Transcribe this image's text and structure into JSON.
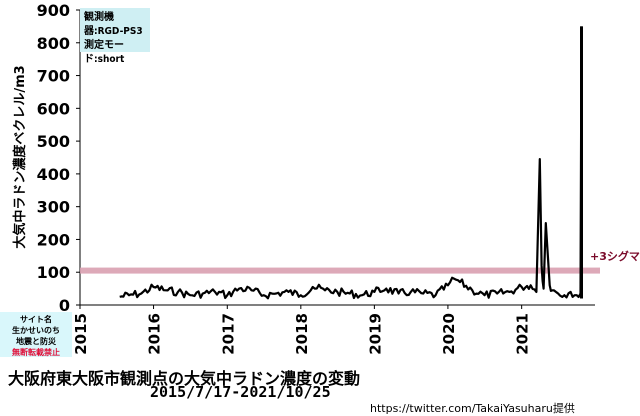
{
  "chart_data": {
    "type": "line",
    "title": "大阪府東大阪市観測点の大気中ラドン濃度の変動",
    "subtitle": "2015/7/17-2021/10/25",
    "ylabel": "大気中ラドン濃度ベクレル/m3",
    "xlabel": "",
    "ylim": [
      0,
      900
    ],
    "xlim": [
      "2015-01-01",
      "2021-12-31"
    ],
    "yticks": [
      "0",
      "100",
      "200",
      "300",
      "400",
      "500",
      "600",
      "700",
      "800",
      "900"
    ],
    "xticks": [
      "2015",
      "2016",
      "2017",
      "2018",
      "2019",
      "2020",
      "2021"
    ],
    "grid": false,
    "threshold": {
      "label": "+3シグマ",
      "value": 105,
      "color": "#d9a0b0"
    },
    "series": [
      {
        "color": "#000000",
        "x": [
          "2015-07-17",
          "2015-09-01",
          "2015-11-01",
          "2016-01-01",
          "2016-03-01",
          "2016-05-01",
          "2016-07-01",
          "2016-09-01",
          "2016-11-01",
          "2017-01-01",
          "2017-03-01",
          "2017-05-01",
          "2017-07-01",
          "2017-09-01",
          "2017-11-01",
          "2018-01-01",
          "2018-03-01",
          "2018-05-01",
          "2018-07-01",
          "2018-09-01",
          "2018-11-01",
          "2019-01-01",
          "2019-03-01",
          "2019-05-01",
          "2019-07-01",
          "2019-09-01",
          "2019-11-01",
          "2020-01-01",
          "2020-02-01",
          "2020-03-01",
          "2020-05-01",
          "2020-07-01",
          "2020-09-01",
          "2020-11-01",
          "2021-01-01",
          "2021-02-15",
          "2021-03-15",
          "2021-04-01",
          "2021-04-10",
          "2021-04-20",
          "2021-05-01",
          "2021-05-20",
          "2021-06-01",
          "2021-06-20",
          "2021-07-01",
          "2021-08-01",
          "2021-09-01",
          "2021-10-01",
          "2021-10-20",
          "2021-10-25"
        ],
        "y": [
          25,
          30,
          35,
          55,
          45,
          40,
          30,
          35,
          40,
          30,
          50,
          45,
          30,
          35,
          40,
          30,
          55,
          45,
          40,
          35,
          30,
          40,
          50,
          35,
          40,
          35,
          30,
          60,
          80,
          70,
          45,
          30,
          35,
          40,
          55,
          60,
          40,
          445,
          120,
          50,
          250,
          60,
          45,
          40,
          35,
          30,
          40,
          30,
          35,
          850
        ]
      }
    ]
  },
  "device_box": {
    "line1": "観測機器:RGD-PS3",
    "line2": "測定モード:short"
  },
  "notice": {
    "line1": "サイト名",
    "line2": "生かせいのち",
    "line3": "地震と防災",
    "line4": "無断転載禁止"
  },
  "credit": "https://twitter.com/TakaiYasuharu提供"
}
